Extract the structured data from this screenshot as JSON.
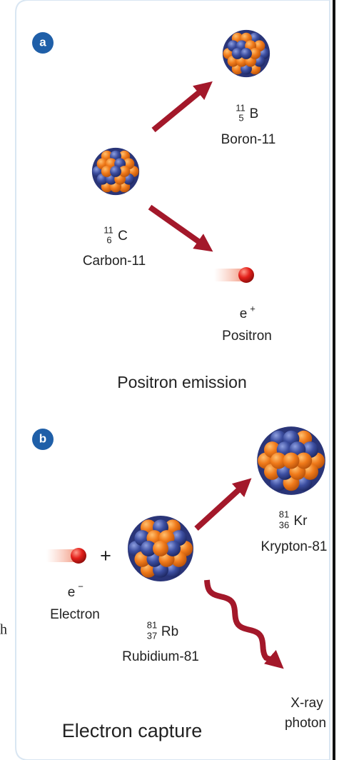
{
  "margin_text": "h",
  "panel_a": {
    "badge": "a",
    "title": "Positron emission",
    "parent": {
      "mass": "11",
      "atomic": "6",
      "symbol": "C",
      "name": "Carbon-11"
    },
    "product": {
      "mass": "11",
      "atomic": "5",
      "symbol": "B",
      "name": "Boron-11"
    },
    "particle": {
      "symbol": "e",
      "charge": "+",
      "name": "Positron"
    }
  },
  "panel_b": {
    "badge": "b",
    "title": "Electron capture",
    "plus": "+",
    "electron": {
      "symbol": "e",
      "charge": "−",
      "name": "Electron"
    },
    "parent": {
      "mass": "81",
      "atomic": "37",
      "symbol": "Rb",
      "name": "Rubidium-81"
    },
    "product": {
      "mass": "81",
      "atomic": "36",
      "symbol": "Kr",
      "name": "Krypton-81"
    },
    "photon": {
      "line1": "X-ray",
      "line2": "photon"
    }
  }
}
